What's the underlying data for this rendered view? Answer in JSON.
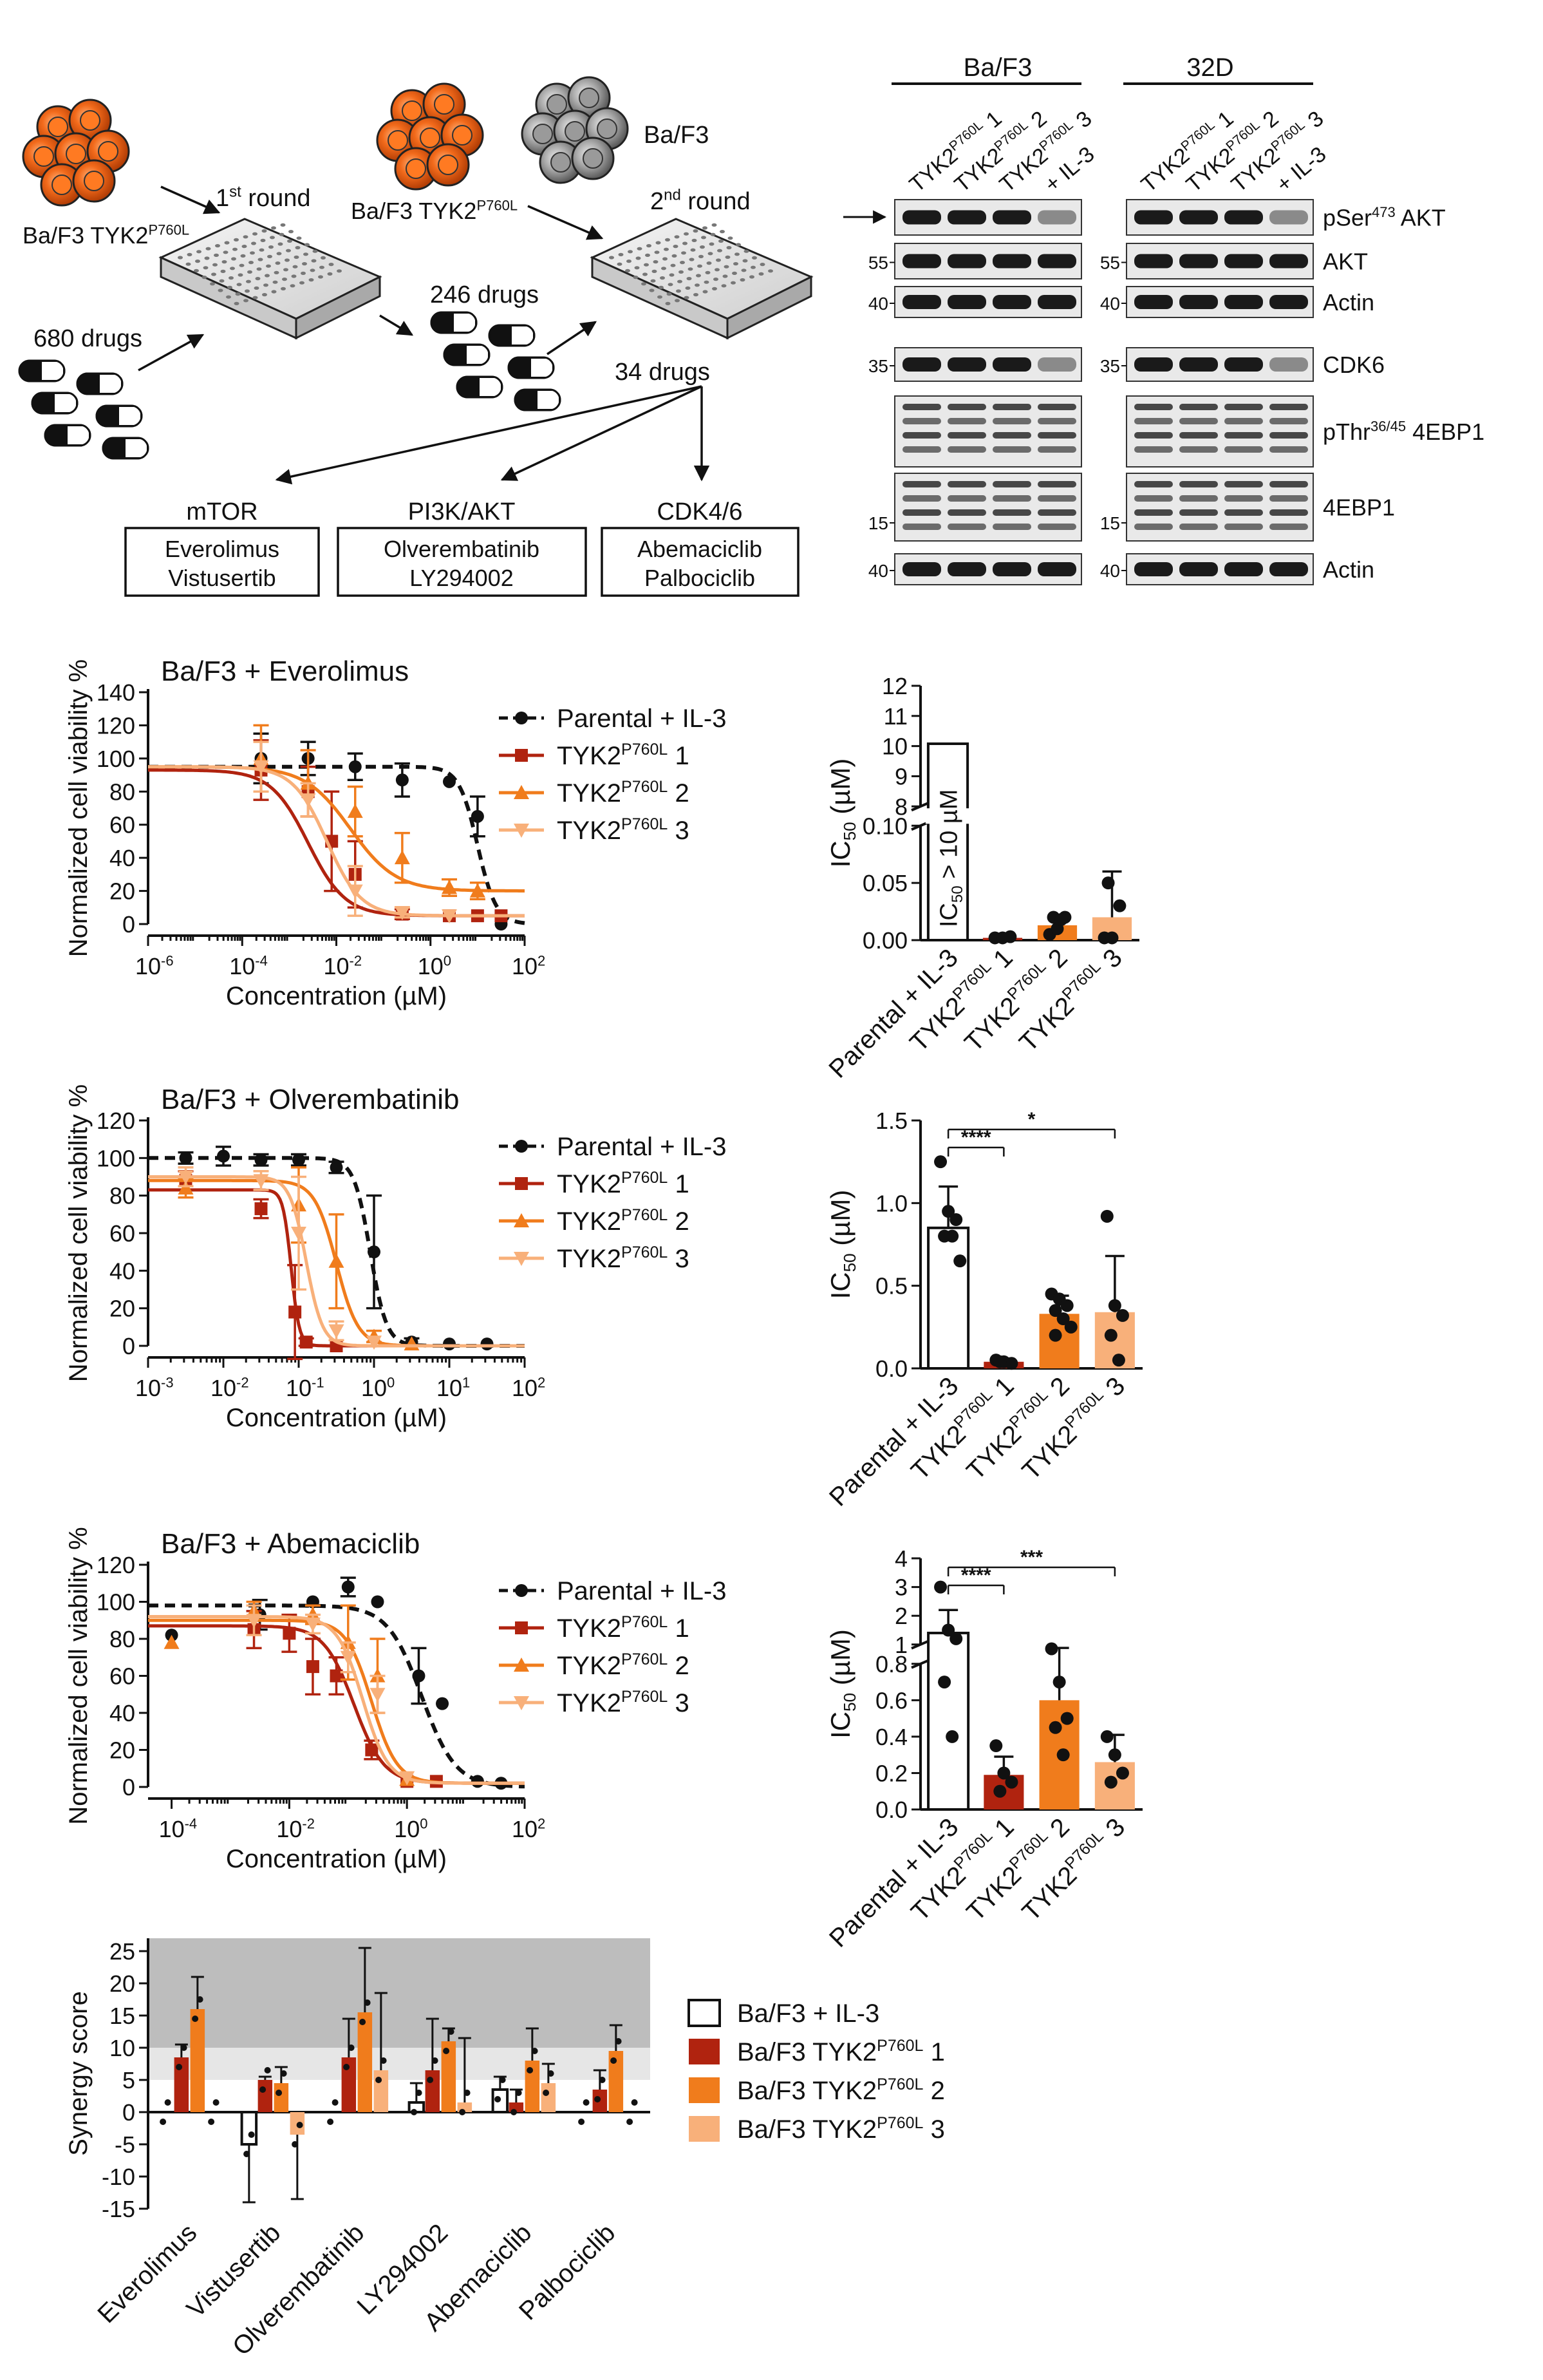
{
  "colors": {
    "parental": "#111111",
    "tyk2_1": "#b0230f",
    "tyk2_2": "#f07c1c",
    "tyk2_3": "#f8b07a",
    "cell_orange": "#f26a1b",
    "cell_gray": "#999999",
    "synergy_dark": "#bdbdbd",
    "synergy_light": "#e6e6e6"
  },
  "screen": {
    "cells_left_label": "Ba/F3 TYK2",
    "cells_left_sup": "P760L",
    "cells_mid_label": "Ba/F3 TYK2",
    "cells_mid_sup": "P760L",
    "cells_gray_label": "Ba/F3",
    "round1_label": "1",
    "round1_sup": "st",
    "round1_suffix": " round",
    "round2_label": "2",
    "round2_sup": "nd",
    "round2_suffix": " round",
    "drugs_680": "680 drugs",
    "drugs_246": "246 drugs",
    "drugs_34": "34 drugs",
    "targets": [
      {
        "name": "mTOR",
        "drugs": [
          "Everolimus",
          "Vistusertib"
        ]
      },
      {
        "name": "PI3K/AKT",
        "drugs": [
          "Olverembatinib",
          "LY294002"
        ]
      },
      {
        "name": "CDK4/6",
        "drugs": [
          "Abemaciclib",
          "Palbociclib"
        ]
      }
    ]
  },
  "western": {
    "group_left": "Ba/F3",
    "group_right": "32D",
    "lanes": [
      {
        "base": "TYK2",
        "sup": "P760L",
        "suffix": " 1"
      },
      {
        "base": "TYK2",
        "sup": "P760L",
        "suffix": " 2"
      },
      {
        "base": "TYK2",
        "sup": "P760L",
        "suffix": " 3"
      },
      {
        "base": "+ IL-3",
        "sup": "",
        "suffix": ""
      }
    ],
    "rows": [
      {
        "label": "pSer",
        "sup": "473",
        "suffix": " AKT",
        "marker": ""
      },
      {
        "label": "AKT",
        "sup": "",
        "suffix": "",
        "marker": "55"
      },
      {
        "label": "Actin",
        "sup": "",
        "suffix": "",
        "marker": "40"
      },
      {
        "label": "CDK6",
        "sup": "",
        "suffix": "",
        "marker": "35"
      },
      {
        "label": "pThr",
        "sup": "36/45",
        "suffix": " 4EBP1",
        "marker": ""
      },
      {
        "label": "4EBP1",
        "sup": "",
        "suffix": "",
        "marker": "15"
      },
      {
        "label": "Actin",
        "sup": "",
        "suffix": "",
        "marker": "40"
      }
    ]
  },
  "chart_data": [
    {
      "type": "line",
      "title": "Ba/F3 + Everolimus",
      "xlabel": "Concentration (µM)",
      "ylabel": "Normalized cell viability %",
      "xscale": "log",
      "xlim_log10": [
        -6,
        2
      ],
      "xticks_log10": [
        -6,
        -4,
        -2,
        0,
        2
      ],
      "ylim": [
        0,
        140
      ],
      "yticks": [
        0,
        20,
        40,
        60,
        80,
        100,
        120,
        140
      ],
      "legend": "top-right",
      "series": [
        {
          "name": "Parental + IL-3",
          "style": "dashed",
          "marker": "circle",
          "top": 95,
          "bottom": 0,
          "ic50_log10": 1.0,
          "hill": 2.2,
          "points": [
            [
              -3.6,
              100,
              15
            ],
            [
              -2.6,
              100,
              10
            ],
            [
              -1.6,
              95,
              8
            ],
            [
              -0.6,
              87,
              10
            ],
            [
              0.4,
              86,
              0
            ],
            [
              1.0,
              65,
              12
            ],
            [
              1.5,
              0,
              0
            ]
          ]
        },
        {
          "name": "TYK2 P760L 1",
          "style": "solid",
          "marker": "square",
          "top": 93,
          "bottom": 5,
          "ic50_log10": -2.6,
          "hill": 1.1,
          "points": [
            [
              -3.6,
              93,
              18
            ],
            [
              -2.6,
              80,
              15
            ],
            [
              -2.1,
              50,
              30
            ],
            [
              -1.6,
              30,
              20
            ],
            [
              -0.6,
              6,
              3
            ],
            [
              0.4,
              5,
              0
            ],
            [
              1.0,
              5,
              0
            ],
            [
              1.5,
              5,
              0
            ]
          ]
        },
        {
          "name": "TYK2 P760L 2",
          "style": "solid",
          "marker": "triangle",
          "top": 95,
          "bottom": 20,
          "ic50_log10": -1.7,
          "hill": 0.9,
          "points": [
            [
              -3.6,
              100,
              20
            ],
            [
              -2.6,
              85,
              20
            ],
            [
              -1.6,
              68,
              15
            ],
            [
              -0.6,
              40,
              15
            ],
            [
              0.4,
              22,
              5
            ],
            [
              1.0,
              20,
              5
            ]
          ]
        },
        {
          "name": "TYK2 P760L 3",
          "style": "solid",
          "marker": "invtriangle",
          "top": 95,
          "bottom": 5,
          "ic50_log10": -2.2,
          "hill": 1.2,
          "points": [
            [
              -3.6,
              95,
              15
            ],
            [
              -2.6,
              75,
              10
            ],
            [
              -1.6,
              20,
              15
            ],
            [
              -0.6,
              7,
              3
            ],
            [
              0.4,
              5,
              0
            ]
          ]
        }
      ]
    },
    {
      "type": "bar",
      "title": "",
      "xlabel": "",
      "ylabel": "IC50 (µM)",
      "categories": [
        "Parental + IL-3",
        "TYK2P760L 1",
        "TYK2P760L 2",
        "TYK2P760L 3"
      ],
      "values": [
        null,
        0.002,
        0.013,
        0.02
      ],
      "errors": [
        null,
        0.002,
        0.007,
        0.04
      ],
      "annotation": "IC50 > 10 µM",
      "upper_yticks": [
        8,
        9,
        10,
        11,
        12
      ],
      "lower_yticks": [
        0.0,
        0.05,
        0.1
      ],
      "points": [
        [],
        [
          0.002,
          0.002,
          0.003
        ],
        [
          0.005,
          0.01,
          0.02,
          0.02,
          0.018
        ],
        [
          0.002,
          0.002,
          0.03,
          0.05
        ]
      ]
    },
    {
      "type": "line",
      "title": "Ba/F3 + Olverembatinib",
      "xlabel": "Concentration (µM)",
      "ylabel": "Normalized cell viability %",
      "xscale": "log",
      "xlim_log10": [
        -3,
        2
      ],
      "xticks_log10": [
        -3,
        -2,
        -1,
        0,
        1,
        2
      ],
      "ylim": [
        0,
        120
      ],
      "yticks": [
        0,
        20,
        40,
        60,
        80,
        100,
        120
      ],
      "legend": "top-right",
      "series": [
        {
          "name": "Parental + IL-3",
          "style": "dashed",
          "marker": "circle",
          "top": 100,
          "bottom": 0,
          "ic50_log10": -0.05,
          "hill": 4.0,
          "points": [
            [
              -2.5,
              100,
              3
            ],
            [
              -2.0,
              101,
              5
            ],
            [
              -1.5,
              99,
              3
            ],
            [
              -1.0,
              99,
              3
            ],
            [
              -0.5,
              95,
              3
            ],
            [
              0.0,
              50,
              30
            ],
            [
              0.5,
              2,
              2
            ],
            [
              1.0,
              1,
              0
            ],
            [
              1.5,
              1,
              0
            ]
          ]
        },
        {
          "name": "TYK2 P760L 1",
          "style": "solid",
          "marker": "square",
          "top": 83,
          "bottom": 0,
          "ic50_log10": -1.1,
          "hill": 8.0,
          "points": [
            [
              -2.5,
              88,
              5
            ],
            [
              -1.5,
              73,
              5
            ],
            [
              -1.05,
              18,
              25
            ],
            [
              -0.9,
              2,
              2
            ],
            [
              -0.5,
              0,
              0
            ]
          ]
        },
        {
          "name": "TYK2 P760L 2",
          "style": "solid",
          "marker": "triangle",
          "top": 88,
          "bottom": 0,
          "ic50_log10": -0.5,
          "hill": 3.0,
          "points": [
            [
              -2.5,
              84,
              5
            ],
            [
              -1.0,
              75,
              20
            ],
            [
              -0.5,
              45,
              25
            ],
            [
              0.0,
              5,
              3
            ],
            [
              0.5,
              1,
              0
            ]
          ]
        },
        {
          "name": "TYK2 P760L 3",
          "style": "solid",
          "marker": "invtriangle",
          "top": 90,
          "bottom": 0,
          "ic50_log10": -0.9,
          "hill": 4.0,
          "points": [
            [
              -2.5,
              90,
              5
            ],
            [
              -1.5,
              88,
              5
            ],
            [
              -1.0,
              60,
              30
            ],
            [
              -0.5,
              8,
              5
            ],
            [
              0.0,
              2,
              0
            ]
          ]
        }
      ]
    },
    {
      "type": "bar",
      "title": "",
      "xlabel": "",
      "ylabel": "IC50 (µM)",
      "categories": [
        "Parental + IL-3",
        "TYK2P760L 1",
        "TYK2P760L 2",
        "TYK2P760L 3"
      ],
      "values": [
        0.85,
        0.04,
        0.33,
        0.34
      ],
      "errors": [
        0.25,
        0.02,
        0.11,
        0.34
      ],
      "yticks": [
        0.0,
        0.5,
        1.0,
        1.5
      ],
      "ylim": [
        0,
        1.5
      ],
      "points": [
        [
          1.25,
          0.95,
          0.9,
          0.8,
          0.8,
          0.65
        ],
        [
          0.05,
          0.04,
          0.03,
          0.04
        ],
        [
          0.45,
          0.42,
          0.38,
          0.35,
          0.3,
          0.25,
          0.2
        ],
        [
          0.92,
          0.38,
          0.32,
          0.2,
          0.05
        ]
      ],
      "significance": [
        {
          "from": 0,
          "to": 1,
          "label": "****"
        },
        {
          "from": 0,
          "to": 3,
          "label": "*"
        }
      ]
    },
    {
      "type": "line",
      "title": "Ba/F3 + Abemaciclib",
      "xlabel": "Concentration (µM)",
      "ylabel": "Normalized cell viability %",
      "xscale": "log",
      "xlim_log10": [
        -4.4,
        2
      ],
      "xticks_log10": [
        -4,
        -2,
        0,
        2
      ],
      "ylim": [
        0,
        120
      ],
      "yticks": [
        0,
        20,
        40,
        60,
        80,
        100,
        120
      ],
      "legend": "top-right",
      "series": [
        {
          "name": "Parental + IL-3",
          "style": "dashed",
          "marker": "circle",
          "top": 98,
          "bottom": 0,
          "ic50_log10": 0.25,
          "hill": 1.5,
          "points": [
            [
              -4.0,
              82,
              0
            ],
            [
              -2.5,
              93,
              8
            ],
            [
              -1.6,
              100,
              0
            ],
            [
              -1.0,
              108,
              5
            ],
            [
              -0.5,
              100,
              0
            ],
            [
              0.2,
              60,
              15
            ],
            [
              0.6,
              45,
              0
            ],
            [
              1.2,
              3,
              0
            ],
            [
              1.6,
              2,
              0
            ]
          ]
        },
        {
          "name": "TYK2 P760L 1",
          "style": "solid",
          "marker": "square",
          "top": 87,
          "bottom": 2,
          "ic50_log10": -0.9,
          "hill": 1.7,
          "points": [
            [
              -2.6,
              85,
              10
            ],
            [
              -2.0,
              83,
              10
            ],
            [
              -1.6,
              65,
              15
            ],
            [
              -1.2,
              60,
              10
            ],
            [
              -0.6,
              20,
              5
            ],
            [
              0.0,
              3,
              0
            ],
            [
              0.5,
              3,
              0
            ]
          ]
        },
        {
          "name": "TYK2 P760L 2",
          "style": "solid",
          "marker": "triangle",
          "top": 90,
          "bottom": 2,
          "ic50_log10": -0.6,
          "hill": 2.0,
          "points": [
            [
              -4.0,
              78,
              0
            ],
            [
              -2.6,
              95,
              5
            ],
            [
              -1.6,
              93,
              5
            ],
            [
              -1.0,
              78,
              20
            ],
            [
              -0.5,
              60,
              20
            ],
            [
              0.0,
              4,
              0
            ]
          ]
        },
        {
          "name": "TYK2 P760L 3",
          "style": "solid",
          "marker": "invtriangle",
          "top": 92,
          "bottom": 2,
          "ic50_log10": -0.75,
          "hill": 2.0,
          "points": [
            [
              -2.6,
              90,
              8
            ],
            [
              -1.6,
              88,
              5
            ],
            [
              -1.0,
              70,
              8
            ],
            [
              -0.5,
              50,
              10
            ],
            [
              0.0,
              5,
              0
            ]
          ]
        }
      ]
    },
    {
      "type": "bar",
      "title": "",
      "xlabel": "",
      "ylabel": "IC50 (µM)",
      "categories": [
        "Parental + IL-3",
        "TYK2P760L 1",
        "TYK2P760L 2",
        "TYK2P760L 3"
      ],
      "values": [
        1.4,
        0.19,
        0.6,
        0.26
      ],
      "errors": [
        0.8,
        0.1,
        0.28,
        0.15
      ],
      "upper_yticks": [
        1,
        2,
        3,
        4
      ],
      "lower_yticks": [
        0.0,
        0.2,
        0.4,
        0.6,
        0.8
      ],
      "points": [
        [
          3.0,
          1.5,
          1.2,
          0.7,
          0.4
        ],
        [
          0.35,
          0.2,
          0.15,
          0.1
        ],
        [
          0.85,
          0.7,
          0.5,
          0.45,
          0.3
        ],
        [
          0.4,
          0.3,
          0.2,
          0.15
        ]
      ],
      "significance": [
        {
          "from": 0,
          "to": 1,
          "label": "****"
        },
        {
          "from": 0,
          "to": 3,
          "label": "***"
        }
      ]
    },
    {
      "type": "bar",
      "title": "",
      "xlabel": "",
      "ylabel": "Synergy score",
      "categories": [
        "Everolimus",
        "Vistusertib",
        "Olverembatinib",
        "LY294002",
        "Abemaciclib",
        "Palbociclib"
      ],
      "ylim": [
        -15,
        27
      ],
      "yticks": [
        -15,
        -10,
        -5,
        0,
        5,
        10,
        15,
        20,
        25
      ],
      "bands": [
        {
          "from": 10,
          "to": 27,
          "meaning": "dark"
        },
        {
          "from": 5,
          "to": 10,
          "meaning": "light"
        }
      ],
      "legend": "right",
      "series": [
        {
          "name": "Ba/F3 + IL-3",
          "values": [
            0,
            -5,
            0,
            1.5,
            3.5,
            0
          ],
          "errors": [
            0,
            9,
            0,
            3,
            2,
            0
          ]
        },
        {
          "name": "Ba/F3 TYK2 P760L 1",
          "values": [
            8.5,
            5,
            8.5,
            6.5,
            1.5,
            3.5
          ],
          "errors": [
            2,
            0.5,
            6,
            8,
            2,
            3
          ]
        },
        {
          "name": "Ba/F3 TYK2 P760L 2",
          "values": [
            16,
            4.5,
            15.5,
            11,
            8,
            9.5
          ],
          "errors": [
            5,
            2.5,
            10,
            2,
            5,
            4
          ]
        },
        {
          "name": "Ba/F3 TYK2 P760L 3",
          "values": [
            0,
            -3.5,
            6.5,
            1.5,
            4.5,
            0
          ],
          "errors": [
            0,
            10,
            12,
            10,
            3,
            0
          ]
        }
      ]
    }
  ],
  "legend_series_labels": [
    {
      "base": "Parental + IL-3",
      "sup": "",
      "suffix": ""
    },
    {
      "base": "TYK2",
      "sup": "P760L",
      "suffix": " 1"
    },
    {
      "base": "TYK2",
      "sup": "P760L",
      "suffix": " 2"
    },
    {
      "base": "TYK2",
      "sup": "P760L",
      "suffix": " 3"
    }
  ],
  "synergy_legend": [
    {
      "base": "Ba/F3 + IL-3",
      "sup": "",
      "suffix": ""
    },
    {
      "base": "Ba/F3 TYK2",
      "sup": "P760L",
      "suffix": " 1"
    },
    {
      "base": "Ba/F3 TYK2",
      "sup": "P760L",
      "suffix": " 2"
    },
    {
      "base": "Ba/F3 TYK2",
      "sup": "P760L",
      "suffix": " 3"
    }
  ],
  "bar_categories_display": [
    {
      "base": "Parental + IL-3",
      "sup": "",
      "suffix": ""
    },
    {
      "base": "TYK2",
      "sup": "P760L",
      "suffix": " 1"
    },
    {
      "base": "TYK2",
      "sup": "P760L",
      "suffix": " 2"
    },
    {
      "base": "TYK2",
      "sup": "P760L",
      "suffix": " 3"
    }
  ],
  "ic50_axis": {
    "base": "IC",
    "sub": "50",
    "suffix": " (µM)"
  },
  "ic50_annotation": {
    "base": "IC",
    "sub": "50",
    "suffix": " > 10 µM"
  }
}
